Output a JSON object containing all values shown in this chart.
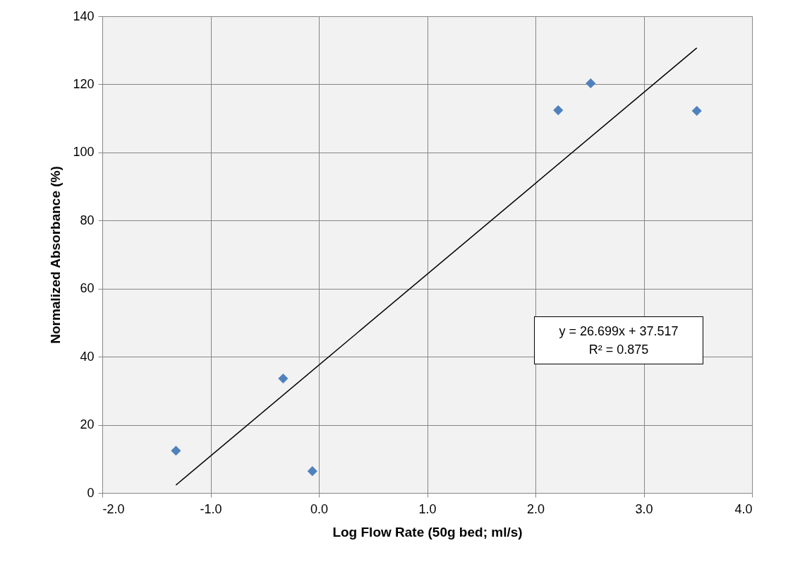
{
  "chart_data": {
    "type": "scatter",
    "xlabel": "Log Flow Rate (50g bed; ml/s)",
    "ylabel": "Normalized Absorbance (%)",
    "xlim": [
      -2,
      4
    ],
    "ylim": [
      0,
      140
    ],
    "xticks": [
      {
        "value": -2,
        "label": "-2.0"
      },
      {
        "value": -1,
        "label": "-1.0"
      },
      {
        "value": 0,
        "label": "0.0"
      },
      {
        "value": 1,
        "label": "1.0"
      },
      {
        "value": 2,
        "label": "2.0"
      },
      {
        "value": 3,
        "label": "3.0"
      },
      {
        "value": 4,
        "label": "4.0"
      }
    ],
    "yticks": [
      0,
      20,
      40,
      60,
      80,
      100,
      120,
      140
    ],
    "grid": true,
    "series": [
      {
        "marker": "diamond",
        "color": "#4f81bd",
        "x": [
          -1.32,
          -0.33,
          -0.06,
          2.21,
          2.51,
          3.49
        ],
        "values": [
          12.4,
          33.6,
          6.4,
          112.4,
          120.3,
          112.2
        ]
      },
      {
        "type": "line",
        "color": "#000000",
        "x": [
          -1.32,
          3.49
        ],
        "values": [
          2.3,
          130.7
        ]
      }
    ],
    "annotations": [
      "y = 26.699x + 37.517",
      "R² = 0.875"
    ]
  }
}
